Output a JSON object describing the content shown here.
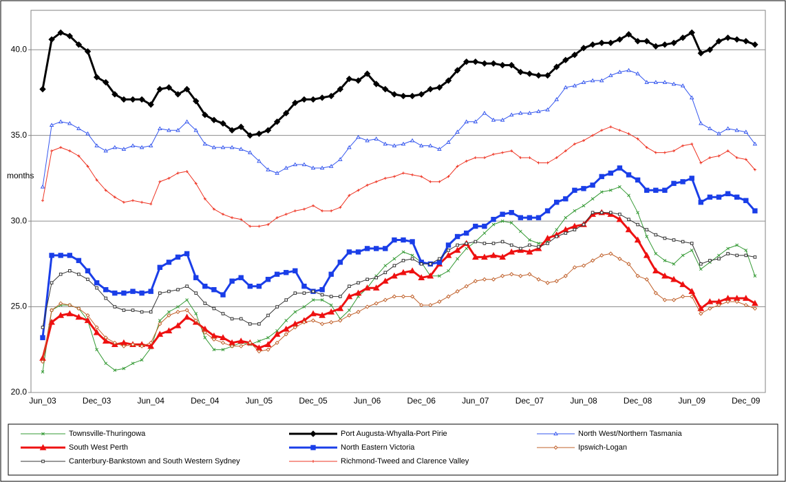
{
  "chart_data": {
    "type": "line",
    "y_label": "months",
    "categories": [
      "Jun_03",
      null,
      null,
      null,
      null,
      null,
      "Dec_03",
      null,
      null,
      null,
      null,
      null,
      "Jun_04",
      null,
      null,
      null,
      null,
      null,
      "Dec_04",
      null,
      null,
      null,
      null,
      null,
      "Jun_05",
      null,
      null,
      null,
      null,
      null,
      "Dec_05",
      null,
      null,
      null,
      null,
      null,
      "Jun_06",
      null,
      null,
      null,
      null,
      null,
      "Dec_06",
      null,
      null,
      null,
      null,
      null,
      "Jun_07",
      null,
      null,
      null,
      null,
      null,
      "Dec_07",
      null,
      null,
      null,
      null,
      null,
      "Jun_08",
      null,
      null,
      null,
      null,
      null,
      "Dec_08",
      null,
      null,
      null,
      null,
      null,
      "Jun_09",
      null,
      null,
      null,
      null,
      null,
      "Dec_09",
      null
    ],
    "ylim": [
      20,
      42.3
    ],
    "yticks": [
      {
        "value": 20,
        "label": "20.0"
      },
      {
        "value": 25,
        "label": "25.0"
      },
      {
        "value": 30,
        "label": "30.0"
      },
      {
        "value": 35,
        "label": "35.0"
      },
      {
        "value": 40,
        "label": "40.0"
      }
    ],
    "grid": true,
    "series": [
      {
        "name": "Townsville-Thuringowa",
        "color": "#339933",
        "line_width": 1,
        "marker": "x",
        "values": [
          21.2,
          24.8,
          25.1,
          25.1,
          24.9,
          24.2,
          22.5,
          21.7,
          21.3,
          21.4,
          21.7,
          21.9,
          22.6,
          24.2,
          24.7,
          25.0,
          25.4,
          24.6,
          23.2,
          22.5,
          22.5,
          22.7,
          22.9,
          22.8,
          23.0,
          23.2,
          23.6,
          24.2,
          24.7,
          25.0,
          25.4,
          25.4,
          25.1,
          24.3,
          24.8,
          25.6,
          26.1,
          26.8,
          27.4,
          27.8,
          28.2,
          28.0,
          27.6,
          26.8,
          26.8,
          27.1,
          27.8,
          28.4,
          28.8,
          29.3,
          29.8,
          30.0,
          29.9,
          29.4,
          28.9,
          28.7,
          28.8,
          29.5,
          30.2,
          30.6,
          30.9,
          31.3,
          31.7,
          31.8,
          32.0,
          31.5,
          30.5,
          29.1,
          28.1,
          27.7,
          27.5,
          28.0,
          28.3,
          27.2,
          27.6,
          28.0,
          28.4,
          28.6,
          28.3,
          26.8
        ]
      },
      {
        "name": "Port Augusta-Whyalla-Port Pirie",
        "color": "#000000",
        "line_width": 3,
        "marker": "diamond",
        "values": [
          37.7,
          40.6,
          41.0,
          40.8,
          40.3,
          39.9,
          38.4,
          38.1,
          37.4,
          37.1,
          37.1,
          37.1,
          36.8,
          37.7,
          37.8,
          37.4,
          37.7,
          37.0,
          36.2,
          35.9,
          35.7,
          35.3,
          35.5,
          35.0,
          35.1,
          35.3,
          35.8,
          36.3,
          36.9,
          37.1,
          37.1,
          37.2,
          37.3,
          37.7,
          38.3,
          38.2,
          38.6,
          38.0,
          37.7,
          37.4,
          37.3,
          37.3,
          37.4,
          37.7,
          37.8,
          38.2,
          38.8,
          39.3,
          39.3,
          39.2,
          39.2,
          39.1,
          39.1,
          38.7,
          38.6,
          38.5,
          38.5,
          39.0,
          39.4,
          39.7,
          40.1,
          40.3,
          40.4,
          40.4,
          40.6,
          40.9,
          40.5,
          40.5,
          40.2,
          40.3,
          40.4,
          40.7,
          41.0,
          39.8,
          40.0,
          40.5,
          40.7,
          40.6,
          40.5,
          40.3
        ]
      },
      {
        "name": "North West/Northern Tasmania",
        "color": "#3355ee",
        "line_width": 1,
        "marker": "triangle-open",
        "values": [
          32.0,
          35.6,
          35.8,
          35.7,
          35.4,
          35.1,
          34.4,
          34.1,
          34.3,
          34.2,
          34.4,
          34.3,
          34.4,
          35.4,
          35.3,
          35.3,
          35.8,
          35.3,
          34.5,
          34.3,
          34.3,
          34.3,
          34.2,
          34.0,
          33.5,
          33.0,
          32.8,
          33.1,
          33.3,
          33.3,
          33.1,
          33.1,
          33.2,
          33.6,
          34.3,
          34.9,
          34.7,
          34.8,
          34.5,
          34.4,
          34.5,
          34.7,
          34.4,
          34.4,
          34.2,
          34.6,
          35.2,
          35.8,
          35.8,
          36.3,
          35.9,
          35.9,
          36.2,
          36.3,
          36.3,
          36.4,
          36.5,
          37.1,
          37.8,
          37.9,
          38.1,
          38.2,
          38.2,
          38.5,
          38.7,
          38.8,
          38.6,
          38.1,
          38.1,
          38.1,
          38.0,
          37.9,
          37.2,
          35.7,
          35.4,
          35.1,
          35.4,
          35.3,
          35.2,
          34.5
        ]
      },
      {
        "name": "South West Perth",
        "color": "#ee1111",
        "line_width": 3,
        "marker": "triangle",
        "values": [
          22.0,
          24.1,
          24.5,
          24.6,
          24.4,
          24.2,
          23.5,
          23.0,
          22.8,
          22.9,
          22.8,
          22.8,
          22.7,
          23.4,
          23.6,
          23.9,
          24.4,
          24.1,
          23.7,
          23.3,
          23.2,
          22.9,
          23.0,
          22.9,
          22.6,
          22.8,
          23.4,
          23.7,
          24.0,
          24.2,
          24.6,
          24.5,
          24.7,
          24.9,
          25.6,
          25.8,
          26.1,
          26.1,
          26.5,
          26.8,
          27.0,
          27.1,
          26.7,
          26.8,
          27.5,
          28.0,
          28.3,
          28.7,
          27.9,
          27.9,
          28.0,
          27.9,
          28.2,
          28.3,
          28.2,
          28.4,
          29.0,
          29.2,
          29.5,
          29.7,
          29.8,
          30.4,
          30.5,
          30.4,
          30.1,
          29.5,
          28.9,
          28.0,
          27.1,
          26.8,
          26.6,
          26.3,
          25.9,
          24.9,
          25.3,
          25.3,
          25.5,
          25.5,
          25.5,
          25.2
        ]
      },
      {
        "name": "North Eastern Victoria",
        "color": "#1a3ee8",
        "line_width": 3,
        "marker": "square",
        "values": [
          23.2,
          28.0,
          28.0,
          28.0,
          27.7,
          27.1,
          26.4,
          26.0,
          25.8,
          25.8,
          25.9,
          25.8,
          25.9,
          27.3,
          27.6,
          27.9,
          28.1,
          26.7,
          26.2,
          26.0,
          25.7,
          26.5,
          26.7,
          26.2,
          26.2,
          26.6,
          26.9,
          27.0,
          27.1,
          26.2,
          25.9,
          26.0,
          26.9,
          27.6,
          28.2,
          28.2,
          28.4,
          28.4,
          28.4,
          28.9,
          28.9,
          28.8,
          27.6,
          27.5,
          27.6,
          28.6,
          29.1,
          29.3,
          29.7,
          29.7,
          30.1,
          30.4,
          30.5,
          30.2,
          30.2,
          30.2,
          30.6,
          31.1,
          31.3,
          31.8,
          31.9,
          32.1,
          32.6,
          32.8,
          33.1,
          32.7,
          32.4,
          31.8,
          31.8,
          31.8,
          32.2,
          32.3,
          32.5,
          31.1,
          31.4,
          31.4,
          31.6,
          31.4,
          31.2,
          30.6
        ]
      },
      {
        "name": "Ipswich-Logan",
        "color": "#c0602a",
        "line_width": 1,
        "marker": "diamond-open",
        "values": [
          21.8,
          24.8,
          25.2,
          25.1,
          24.9,
          24.5,
          23.8,
          23.2,
          22.9,
          22.7,
          22.8,
          22.7,
          22.9,
          24.0,
          24.5,
          24.7,
          24.8,
          24.2,
          23.5,
          23.1,
          22.9,
          22.7,
          22.7,
          22.9,
          22.4,
          22.5,
          22.9,
          23.4,
          23.8,
          24.1,
          24.2,
          24.0,
          24.1,
          24.2,
          24.5,
          24.7,
          25.0,
          25.2,
          25.4,
          25.6,
          25.6,
          25.6,
          25.1,
          25.1,
          25.3,
          25.6,
          25.9,
          26.2,
          26.5,
          26.6,
          26.6,
          26.8,
          26.9,
          26.8,
          26.9,
          26.6,
          26.4,
          26.5,
          26.8,
          27.3,
          27.4,
          27.7,
          28.0,
          28.1,
          27.8,
          27.5,
          26.8,
          26.6,
          25.8,
          25.4,
          25.4,
          25.6,
          25.6,
          24.6,
          24.9,
          25.1,
          25.3,
          25.3,
          25.1,
          24.9
        ]
      },
      {
        "name": "Canterbury-Bankstown and South Western Sydney",
        "color": "#333333",
        "line_width": 1,
        "marker": "square-open",
        "values": [
          23.8,
          26.4,
          26.9,
          27.1,
          26.9,
          26.6,
          26.1,
          25.5,
          25.0,
          24.8,
          24.8,
          24.7,
          24.7,
          25.8,
          25.9,
          26.0,
          26.2,
          25.8,
          25.2,
          24.9,
          24.6,
          24.3,
          24.3,
          24.0,
          24.0,
          24.5,
          25.0,
          25.4,
          25.8,
          25.8,
          25.9,
          25.7,
          25.6,
          25.6,
          26.2,
          26.4,
          26.6,
          26.7,
          27.0,
          27.4,
          27.7,
          27.8,
          27.5,
          27.5,
          27.8,
          28.3,
          28.6,
          28.7,
          28.8,
          28.7,
          28.7,
          28.8,
          28.6,
          28.4,
          28.6,
          28.5,
          28.7,
          29.1,
          29.3,
          29.5,
          29.8,
          30.5,
          30.5,
          30.5,
          30.4,
          30.1,
          29.8,
          29.5,
          29.2,
          29.0,
          28.9,
          28.8,
          28.7,
          27.5,
          27.7,
          27.8,
          28.1,
          28.0,
          28.0,
          27.9
        ]
      },
      {
        "name": "Richmond-Tweed and Clarence Valley",
        "color": "#ee3322",
        "line_width": 1,
        "marker": "plus",
        "values": [
          31.2,
          34.1,
          34.3,
          34.1,
          33.8,
          33.2,
          32.4,
          31.8,
          31.4,
          31.1,
          31.2,
          31.1,
          31.0,
          32.3,
          32.5,
          32.8,
          32.9,
          32.2,
          31.3,
          30.7,
          30.4,
          30.2,
          30.1,
          29.7,
          29.7,
          29.8,
          30.2,
          30.4,
          30.6,
          30.7,
          30.9,
          30.6,
          30.6,
          30.8,
          31.5,
          31.8,
          32.1,
          32.3,
          32.5,
          32.6,
          32.8,
          32.7,
          32.6,
          32.3,
          32.3,
          32.6,
          33.2,
          33.5,
          33.7,
          33.7,
          33.9,
          34.0,
          34.1,
          33.7,
          33.7,
          33.4,
          33.4,
          33.7,
          34.1,
          34.5,
          34.7,
          35.0,
          35.3,
          35.5,
          35.3,
          35.1,
          34.8,
          34.3,
          34.0,
          34.0,
          34.1,
          34.4,
          34.5,
          33.4,
          33.7,
          33.8,
          34.1,
          33.7,
          33.6,
          33.0
        ]
      }
    ]
  }
}
